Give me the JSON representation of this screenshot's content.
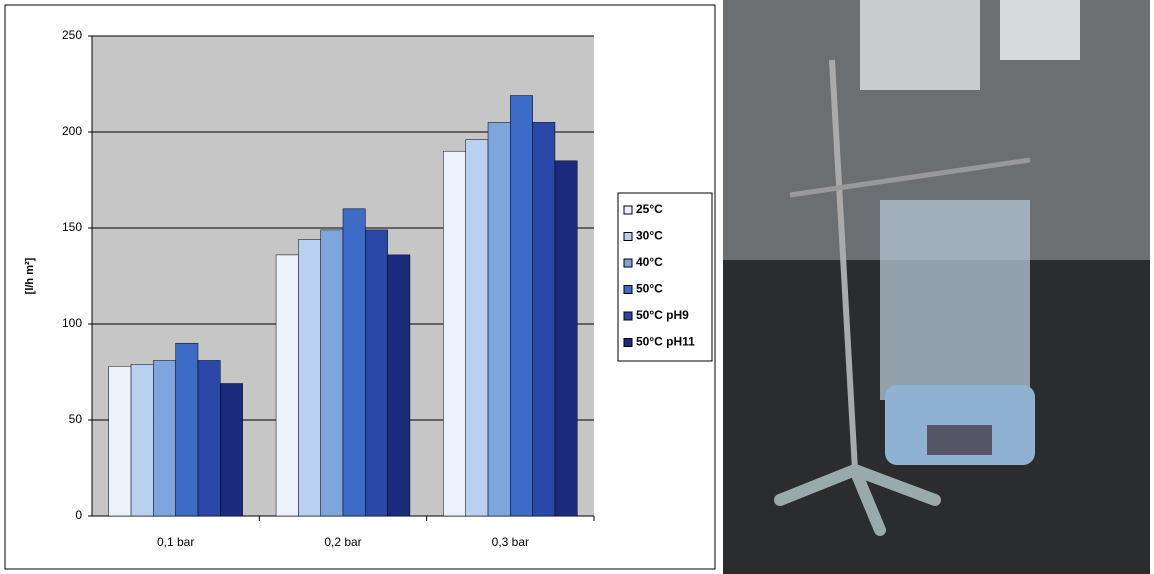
{
  "chart_data": {
    "type": "bar",
    "y_label": "[l/h m²]",
    "categories": [
      "0,1 bar",
      "0,2 bar",
      "0,3 bar"
    ],
    "series": [
      {
        "name": "25°C",
        "color": "#eaf1fb",
        "values": [
          78,
          136,
          190
        ]
      },
      {
        "name": "30°C",
        "color": "#b9d0f0",
        "values": [
          79,
          144,
          196
        ]
      },
      {
        "name": "40°C",
        "color": "#7ea5dc",
        "values": [
          81,
          149,
          205
        ]
      },
      {
        "name": "50°C",
        "color": "#3c6cc8",
        "values": [
          90,
          160,
          219
        ]
      },
      {
        "name": "50°C pH9",
        "color": "#2b47a8",
        "values": [
          81,
          149,
          205
        ]
      },
      {
        "name": "50°C pH11",
        "color": "#1c2a7e",
        "values": [
          69,
          136,
          185
        ]
      }
    ],
    "ylim": [
      0,
      250
    ],
    "yticks": [
      0,
      50,
      100,
      150,
      200,
      250
    ],
    "grid": true,
    "legend": "right"
  }
}
